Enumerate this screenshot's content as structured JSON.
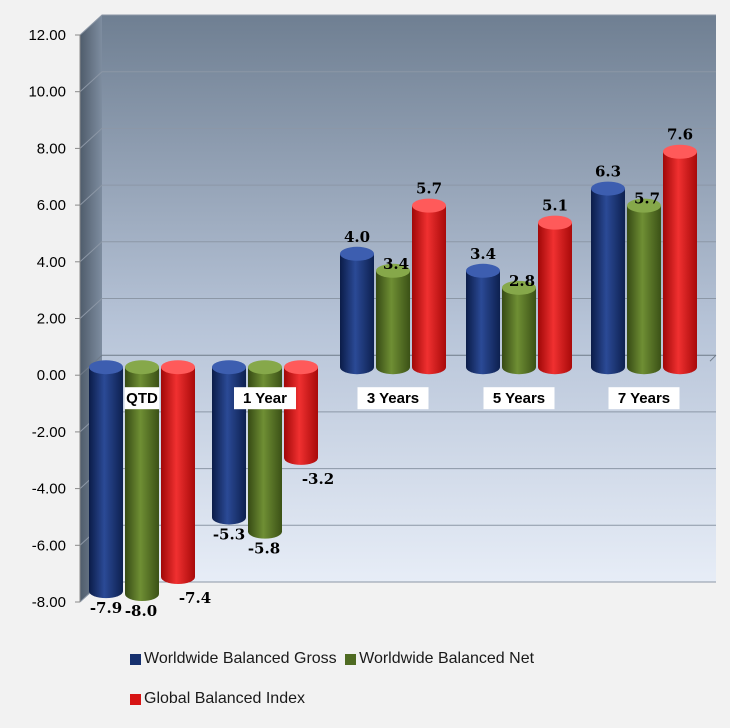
{
  "chart_data": {
    "type": "bar",
    "categories": [
      "QTD",
      "1 Year",
      "3 Years",
      "5 Years",
      "7 Years"
    ],
    "series": [
      {
        "name": "Worldwide Balanced Gross",
        "values": [
          -7.9,
          -5.3,
          4.0,
          3.4,
          6.3
        ],
        "labels": [
          "-7.9",
          "-5.3",
          "4.0",
          "3.4",
          "6.3"
        ],
        "color": "#16306e"
      },
      {
        "name": "Worldwide Balanced Net",
        "values": [
          -8.0,
          -5.8,
          3.4,
          2.8,
          5.7
        ],
        "labels": [
          "-8.0",
          "-5.8",
          "3.4",
          "2.8",
          "5.7"
        ],
        "color": "#4f6b22"
      },
      {
        "name": "Global Balanced Index",
        "values": [
          -7.4,
          -3.2,
          5.7,
          5.1,
          7.6
        ],
        "labels": [
          "-7.4",
          "-3.2",
          "5.7",
          "5.1",
          "7.6"
        ],
        "color": "#d71414"
      }
    ],
    "yticks": [
      "12.00",
      "10.00",
      "8.00",
      "6.00",
      "4.00",
      "2.00",
      "0.00",
      "-2.00",
      "-4.00",
      "-6.00",
      "-8.00"
    ],
    "ylim": [
      -8,
      12
    ],
    "grid": true,
    "legend_position": "bottom"
  },
  "legend": {
    "gross": "Worldwide Balanced Gross",
    "net": "Worldwide Balanced Net",
    "index": "Global Balanced Index"
  }
}
